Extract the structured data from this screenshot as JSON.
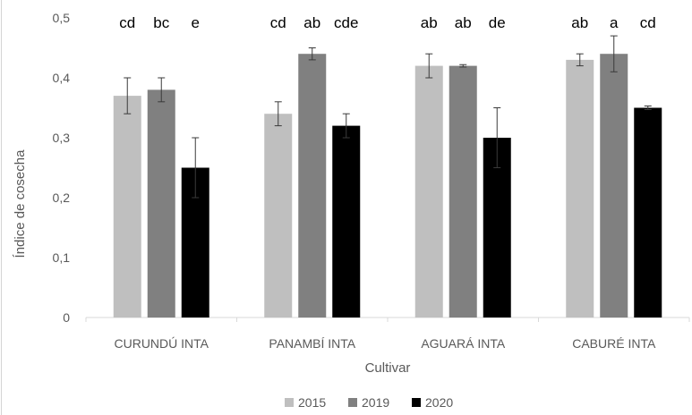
{
  "chart_data": {
    "type": "bar",
    "xlabel": "Cultivar",
    "ylabel": "Índice de cosecha",
    "categories": [
      "CURUNDÚ INTA",
      "PANAMBÍ INTA",
      "AGUARÁ INTA",
      "CABURÉ INTA"
    ],
    "ylim": [
      0,
      0.5
    ],
    "yticks": [
      0,
      0.1,
      0.2,
      0.3,
      0.4,
      0.5
    ],
    "ytick_labels": [
      "0",
      "0,1",
      "0,2",
      "0,3",
      "0,4",
      "0,5"
    ],
    "grid": false,
    "legend": "bottom",
    "series": [
      {
        "name": "2015",
        "color": "#bfbfbf",
        "values": [
          0.37,
          0.34,
          0.42,
          0.43
        ],
        "errors": [
          0.03,
          0.02,
          0.02,
          0.01
        ],
        "letters": [
          "cd",
          "cd",
          "ab",
          "ab"
        ]
      },
      {
        "name": "2019",
        "color": "#808080",
        "values": [
          0.38,
          0.44,
          0.42,
          0.44
        ],
        "errors": [
          0.02,
          0.01,
          0.002,
          0.03
        ],
        "letters": [
          "bc",
          "ab",
          "ab",
          "a"
        ]
      },
      {
        "name": "2020",
        "color": "#000000",
        "values": [
          0.25,
          0.32,
          0.3,
          0.35
        ],
        "errors": [
          0.05,
          0.02,
          0.05,
          0.003
        ],
        "letters": [
          "e",
          "cde",
          "de",
          "cd"
        ]
      }
    ]
  }
}
